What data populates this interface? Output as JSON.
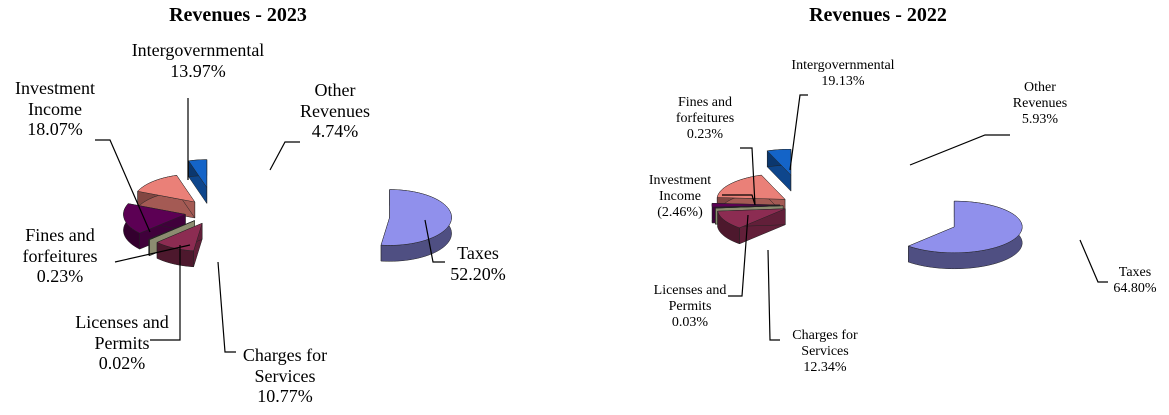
{
  "chart_data": [
    {
      "type": "pie",
      "title": "Revenues - 2023",
      "categories": [
        "Taxes",
        "Charges for Services",
        "Licenses and Permits",
        "Fines and forfeitures",
        "Investment Income",
        "Intergovernmental",
        "Other Revenues"
      ],
      "values": [
        52.2,
        10.77,
        0.02,
        0.23,
        18.07,
        13.97,
        4.74
      ],
      "value_labels": [
        "52.20%",
        "10.77%",
        "0.02%",
        "0.23%",
        "18.07%",
        "13.97%",
        "4.74%"
      ],
      "colors": [
        "#9090ec",
        "#8c2c52",
        "#c8c8a0",
        "#7c7c5c",
        "#5c0054",
        "#ea8078",
        "#1464c8"
      ]
    },
    {
      "type": "pie",
      "title": "Revenues - 2022",
      "categories": [
        "Taxes",
        "Charges for Services",
        "Licenses and Permits",
        "Fines and forfeitures",
        "Investment Income",
        "Intergovernmental",
        "Other Revenues"
      ],
      "values": [
        64.8,
        12.34,
        0.03,
        0.23,
        -2.46,
        19.13,
        5.93
      ],
      "value_labels": [
        "64.80%",
        "12.34%",
        "0.03%",
        "0.23%",
        "(2.46%)",
        "19.13%",
        "5.93%"
      ],
      "colors": [
        "#9090ec",
        "#8c2c52",
        "#c8c8a0",
        "#7c7c5c",
        "#5c0054",
        "#ea8078",
        "#1464c8"
      ]
    }
  ]
}
